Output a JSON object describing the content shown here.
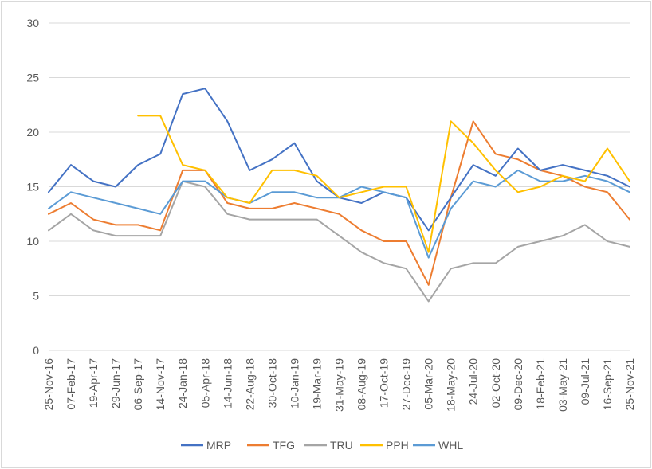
{
  "chart_data": {
    "type": "line",
    "title": "",
    "xlabel": "",
    "ylabel": "",
    "ylim": [
      0,
      30
    ],
    "yticks": [
      "0",
      "5",
      "10",
      "15",
      "20",
      "25",
      "30"
    ],
    "xticks": [
      "25-Nov-16",
      "07-Feb-17",
      "19-Apr-17",
      "29-Jun-17",
      "06-Sep-17",
      "14-Nov-17",
      "24-Jan-18",
      "05-Apr-18",
      "14-Jun-18",
      "22-Aug-18",
      "30-Oct-18",
      "10-Jan-19",
      "19-Mar-19",
      "31-May-19",
      "08-Aug-19",
      "17-Oct-19",
      "27-Dec-19",
      "05-Mar-20",
      "18-May-20",
      "24-Jul-20",
      "02-Oct-20",
      "09-Dec-20",
      "18-Feb-21",
      "03-May-21",
      "09-Jul-21",
      "16-Sep-21",
      "25-Nov-21"
    ],
    "grid": "horizontal",
    "legend_position": "bottom",
    "x": [
      "25-Nov-16",
      "07-Feb-17",
      "19-Apr-17",
      "29-Jun-17",
      "06-Sep-17",
      "14-Nov-17",
      "24-Jan-18",
      "05-Apr-18",
      "14-Jun-18",
      "22-Aug-18",
      "30-Oct-18",
      "10-Jan-19",
      "19-Mar-19",
      "31-May-19",
      "08-Aug-19",
      "17-Oct-19",
      "27-Dec-19",
      "05-Mar-20",
      "18-May-20",
      "24-Jul-20",
      "02-Oct-20",
      "09-Dec-20",
      "18-Feb-21",
      "03-May-21",
      "09-Jul-21",
      "16-Sep-21",
      "25-Nov-21"
    ],
    "series": [
      {
        "name": "MRP",
        "color": "#4472c4",
        "values": [
          14.5,
          17.0,
          15.5,
          15.0,
          17.0,
          18.0,
          23.5,
          24.0,
          21.0,
          16.5,
          17.5,
          19.0,
          15.5,
          14.0,
          13.5,
          14.5,
          14.0,
          11.0,
          14.0,
          17.0,
          16.0,
          18.5,
          16.5,
          17.0,
          16.5,
          16.0,
          15.0
        ]
      },
      {
        "name": "TFG",
        "color": "#ed7d31",
        "values": [
          12.5,
          13.5,
          12.0,
          11.5,
          11.5,
          11.0,
          16.5,
          16.5,
          13.5,
          13.0,
          13.0,
          13.5,
          13.0,
          12.5,
          11.0,
          10.0,
          10.0,
          6.0,
          14.0,
          21.0,
          18.0,
          17.5,
          16.5,
          16.0,
          15.0,
          14.5,
          12.0
        ]
      },
      {
        "name": "TRU",
        "color": "#a5a5a5",
        "values": [
          11.0,
          12.5,
          11.0,
          10.5,
          10.5,
          10.5,
          15.5,
          15.0,
          12.5,
          12.0,
          12.0,
          12.0,
          12.0,
          10.5,
          9.0,
          8.0,
          7.5,
          4.5,
          7.5,
          8.0,
          8.0,
          9.5,
          10.0,
          10.5,
          11.5,
          10.0,
          9.5
        ]
      },
      {
        "name": "PPH",
        "color": "#ffc000",
        "values": [
          null,
          null,
          null,
          null,
          21.5,
          21.5,
          17.0,
          16.5,
          14.0,
          13.5,
          16.5,
          16.5,
          16.0,
          14.0,
          14.5,
          15.0,
          15.0,
          9.0,
          21.0,
          19.0,
          16.5,
          14.5,
          15.0,
          16.0,
          15.5,
          18.5,
          15.5
        ]
      },
      {
        "name": "WHL",
        "color": "#5b9bd5",
        "values": [
          13.0,
          14.5,
          14.0,
          13.5,
          13.0,
          12.5,
          15.5,
          15.5,
          14.0,
          13.5,
          14.5,
          14.5,
          14.0,
          14.0,
          15.0,
          14.5,
          14.0,
          8.5,
          13.0,
          15.5,
          15.0,
          16.5,
          15.5,
          15.5,
          16.0,
          15.5,
          14.5
        ]
      }
    ]
  }
}
